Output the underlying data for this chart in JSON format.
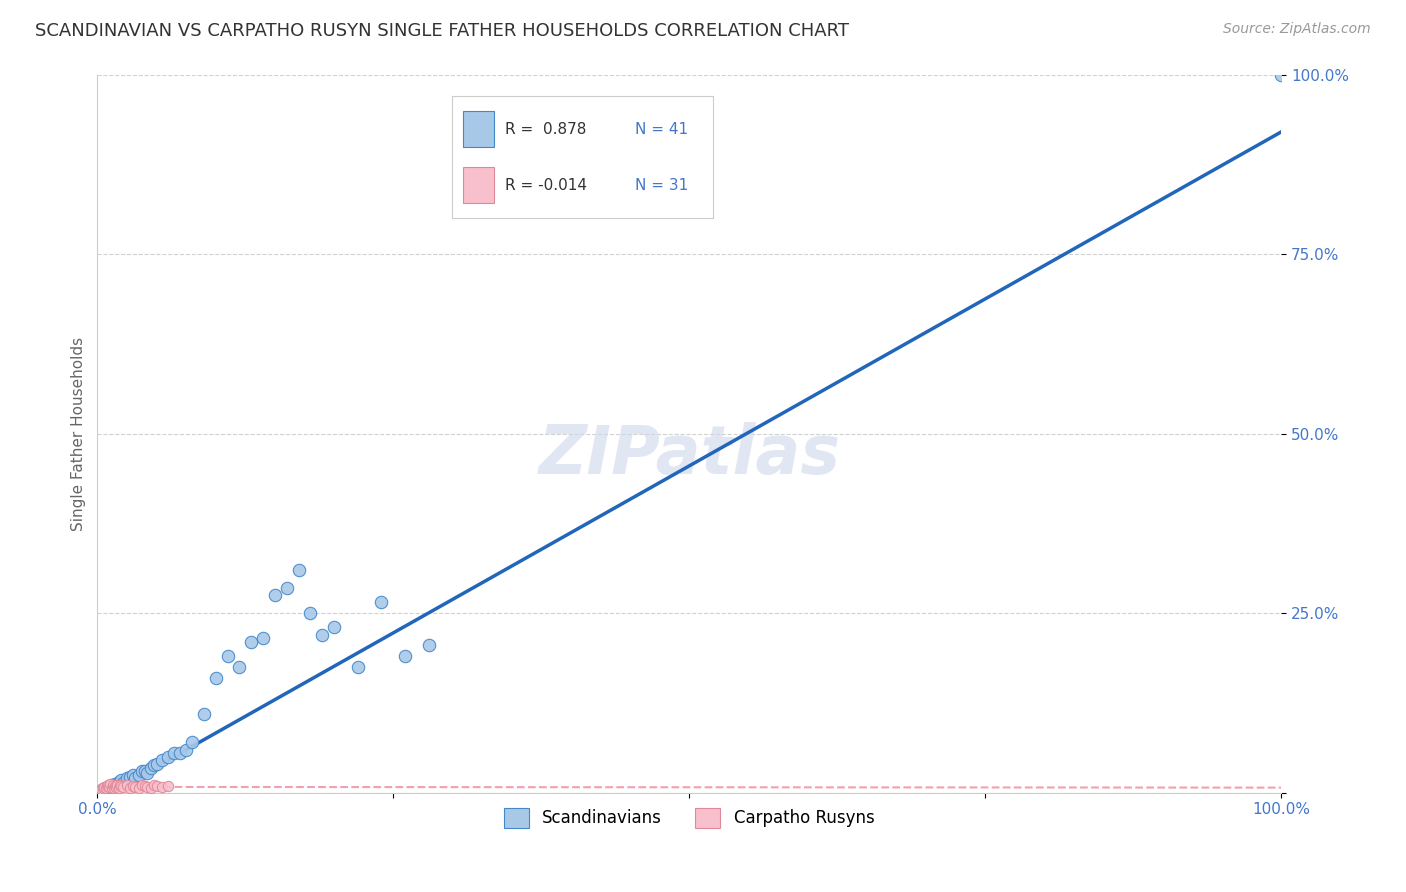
{
  "title": "SCANDINAVIAN VS CARPATHO RUSYN SINGLE FATHER HOUSEHOLDS CORRELATION CHART",
  "source": "Source: ZipAtlas.com",
  "ylabel": "Single Father Households",
  "watermark": "ZIPatlas",
  "legend_label1": "Scandinavians",
  "legend_label2": "Carpatho Rusyns",
  "blue_color": "#a8c8e8",
  "blue_edge_color": "#4488cc",
  "pink_color": "#f8c0cc",
  "pink_edge_color": "#e08898",
  "line_blue_color": "#2266bb",
  "line_pink_color": "#f0a0b0",
  "blue_scatter_x": [
    0.005,
    0.01,
    0.012,
    0.015,
    0.018,
    0.02,
    0.022,
    0.025,
    0.028,
    0.03,
    0.032,
    0.035,
    0.038,
    0.04,
    0.042,
    0.045,
    0.048,
    0.05,
    0.055,
    0.06,
    0.065,
    0.07,
    0.075,
    0.08,
    0.09,
    0.1,
    0.11,
    0.12,
    0.13,
    0.14,
    0.15,
    0.16,
    0.17,
    0.18,
    0.19,
    0.2,
    0.22,
    0.24,
    0.26,
    0.28,
    1.0
  ],
  "blue_scatter_y": [
    0.005,
    0.008,
    0.01,
    0.012,
    0.015,
    0.018,
    0.014,
    0.02,
    0.022,
    0.025,
    0.02,
    0.025,
    0.03,
    0.03,
    0.028,
    0.035,
    0.038,
    0.04,
    0.045,
    0.05,
    0.055,
    0.055,
    0.06,
    0.07,
    0.11,
    0.16,
    0.19,
    0.175,
    0.21,
    0.215,
    0.275,
    0.285,
    0.31,
    0.25,
    0.22,
    0.23,
    0.175,
    0.265,
    0.19,
    0.205,
    1.0
  ],
  "pink_scatter_x": [
    0.003,
    0.005,
    0.006,
    0.007,
    0.008,
    0.009,
    0.01,
    0.011,
    0.012,
    0.013,
    0.014,
    0.015,
    0.016,
    0.017,
    0.018,
    0.019,
    0.02,
    0.022,
    0.025,
    0.028,
    0.03,
    0.032,
    0.035,
    0.038,
    0.04,
    0.042,
    0.045,
    0.048,
    0.05,
    0.055,
    0.06
  ],
  "pink_scatter_y": [
    0.005,
    0.006,
    0.008,
    0.007,
    0.009,
    0.01,
    0.008,
    0.012,
    0.006,
    0.01,
    0.007,
    0.009,
    0.008,
    0.011,
    0.007,
    0.01,
    0.009,
    0.008,
    0.01,
    0.007,
    0.009,
    0.008,
    0.007,
    0.01,
    0.009,
    0.008,
    0.007,
    0.01,
    0.009,
    0.008,
    0.009
  ],
  "blue_line_x": [
    0.0,
    1.0
  ],
  "blue_line_y": [
    -0.01,
    0.92
  ],
  "pink_line_x": [
    0.0,
    1.0
  ],
  "pink_line_y": [
    0.008,
    0.007
  ],
  "xmin": 0.0,
  "xmax": 1.0,
  "ymin": 0.0,
  "ymax": 1.0,
  "yticks": [
    0.0,
    0.25,
    0.5,
    0.75,
    1.0
  ],
  "ytick_labels": [
    "",
    "25.0%",
    "50.0%",
    "75.0%",
    "100.0%"
  ],
  "xticks": [
    0.0,
    0.25,
    0.5,
    0.75,
    1.0
  ],
  "xtick_labels": [
    "0.0%",
    "",
    "",
    "",
    "100.0%"
  ],
  "grid_color": "#cccccc",
  "bg_color": "#ffffff",
  "title_color": "#333333",
  "title_fontsize": 13,
  "source_fontsize": 10,
  "axis_label_color": "#4477cc",
  "scatter_size_blue": 80,
  "scatter_size_pink": 55,
  "legend_R1": "R =  0.878",
  "legend_N1": "N = 41",
  "legend_R2": "R = -0.014",
  "legend_N2": "N = 31"
}
